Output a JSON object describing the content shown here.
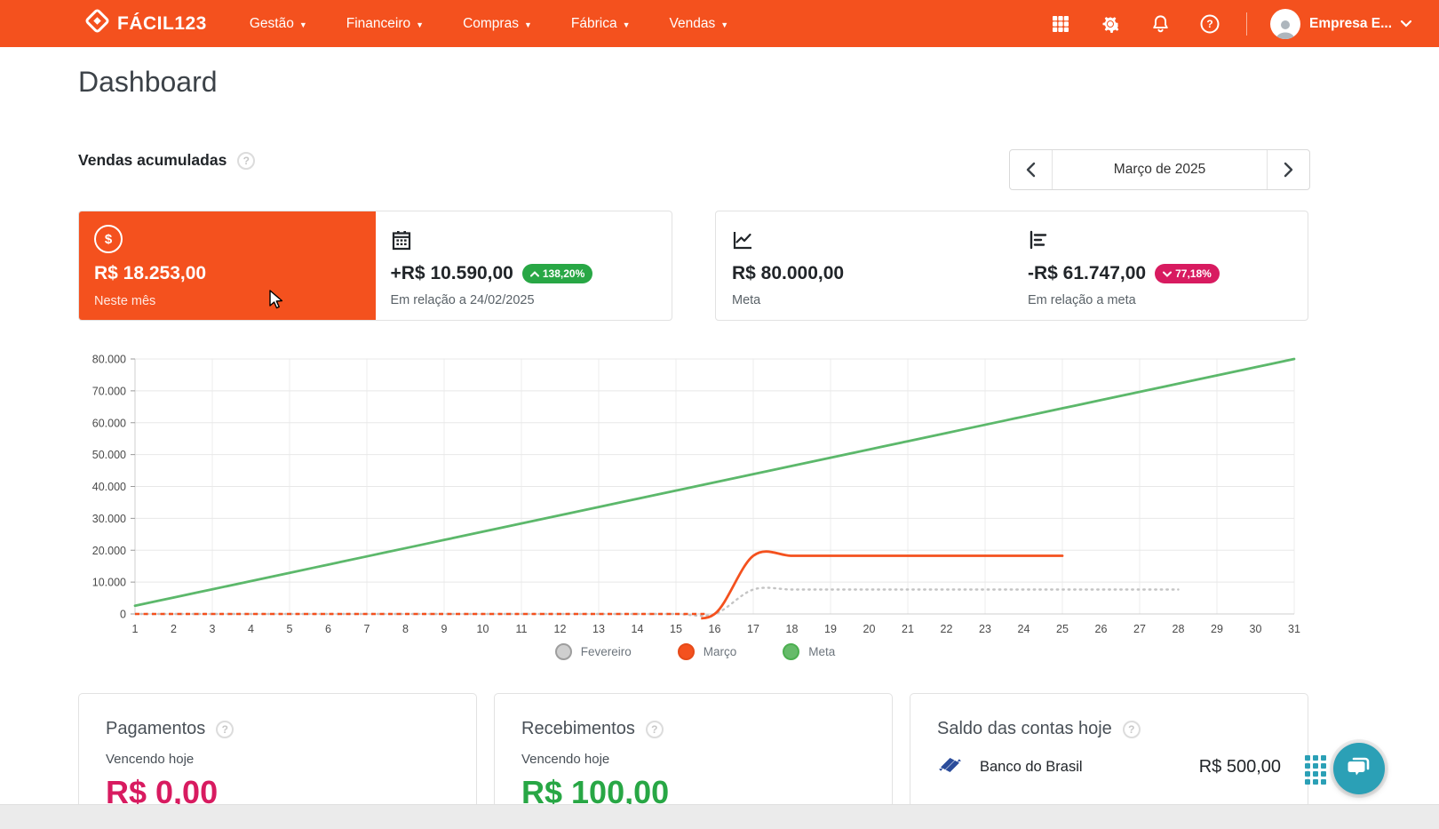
{
  "navbar": {
    "brand": "FÁCIL123",
    "menus": [
      {
        "label": "Gestão"
      },
      {
        "label": "Financeiro"
      },
      {
        "label": "Compras"
      },
      {
        "label": "Fábrica"
      },
      {
        "label": "Vendas"
      }
    ],
    "icons": [
      "apps-grid-icon",
      "settings-gear-icon",
      "notifications-bell-icon",
      "help-icon"
    ],
    "user": {
      "name": "Empresa E..."
    }
  },
  "page": {
    "title": "Dashboard"
  },
  "sales_section": {
    "title": "Vendas acumuladas",
    "period_label": "Março de 2025",
    "cards": {
      "current": {
        "value": "R$ 18.253,00",
        "label": "Neste mês",
        "icon": "dollar-circle-icon"
      },
      "comparison": {
        "value": "+R$ 10.590,00",
        "badge_text": "138,20%",
        "badge_direction": "up",
        "badge_color": "#28A745",
        "label": "Em relação a 24/02/2025",
        "icon": "calendar-icon"
      },
      "goal": {
        "value": "R$ 80.000,00",
        "label": "Meta",
        "icon": "line-chart-icon"
      },
      "vs_goal": {
        "value": "-R$ 61.747,00",
        "badge_text": "77,18%",
        "badge_direction": "down",
        "badge_color": "#D81B60",
        "label": "Em relação a meta",
        "icon": "bar-chart-icon"
      }
    }
  },
  "chart_data": {
    "type": "line",
    "title": "Vendas acumuladas",
    "x": [
      1,
      2,
      3,
      4,
      5,
      6,
      7,
      8,
      9,
      10,
      11,
      12,
      13,
      14,
      15,
      16,
      17,
      18,
      19,
      20,
      21,
      22,
      23,
      24,
      25,
      26,
      27,
      28,
      29,
      30,
      31
    ],
    "xlabel": "",
    "ylabel": "",
    "ylim": [
      0,
      80000
    ],
    "yticks": [
      "0",
      "10.000",
      "20.000",
      "30.000",
      "40.000",
      "50.000",
      "60.000",
      "70.000",
      "80.000"
    ],
    "ytick_values": [
      0,
      10000,
      20000,
      30000,
      40000,
      50000,
      60000,
      70000,
      80000
    ],
    "grid": true,
    "legend_position": "bottom",
    "series": [
      {
        "name": "Fevereiro",
        "style": "dotted",
        "color": "#c4c4c4",
        "legend_fill": "#cfcfcf",
        "legend_border": "#9e9e9e",
        "values": [
          0,
          0,
          0,
          0,
          0,
          0,
          0,
          0,
          0,
          0,
          0,
          0,
          0,
          0,
          0,
          0,
          7663,
          7663,
          7663,
          7663,
          7663,
          7663,
          7663,
          7663,
          7663,
          7663,
          7663,
          7663
        ]
      },
      {
        "name": "Março",
        "style": "dashed-flat-then-solid",
        "color": "#F4511E",
        "legend_fill": "#F4511E",
        "legend_border": "#E64A19",
        "values": [
          0,
          0,
          0,
          0,
          0,
          0,
          0,
          0,
          0,
          0,
          0,
          0,
          0,
          0,
          0,
          0,
          18253,
          18253,
          18253,
          18253,
          18253,
          18253,
          18253,
          18253,
          18253
        ]
      },
      {
        "name": "Meta",
        "style": "solid",
        "color": "#5CB86B",
        "legend_fill": "#66BB6A",
        "legend_border": "#4CAF50",
        "values": [
          2581,
          5161,
          7742,
          10323,
          12903,
          15484,
          18065,
          20645,
          23226,
          25806,
          28387,
          30968,
          33548,
          36129,
          38710,
          41290,
          43871,
          46452,
          49032,
          51613,
          54194,
          56774,
          59355,
          61935,
          64516,
          67097,
          69677,
          72258,
          74839,
          77419,
          80000
        ]
      }
    ]
  },
  "bottom_cards": {
    "pagamentos": {
      "title": "Pagamentos",
      "subtitle": "Vencendo hoje",
      "value": "R$ 0,00",
      "value_color": "#D81B60"
    },
    "recebimentos": {
      "title": "Recebimentos",
      "subtitle": "Vencendo hoje",
      "value": "R$ 100,00",
      "value_color": "#28A745"
    },
    "saldo": {
      "title": "Saldo das contas hoje",
      "bank": "Banco do Brasil",
      "bank_icon": "banco-do-brasil-logo",
      "value": "R$ 500,00"
    }
  },
  "colors": {
    "accent_orange": "#F4511E",
    "badge_green": "#28A745",
    "badge_pink": "#D81B60",
    "meta_green": "#5CB86B",
    "feb_gray": "#c4c4c4",
    "chat_teal": "#2BA0B6",
    "bb_blue": "#2B4C9B"
  }
}
